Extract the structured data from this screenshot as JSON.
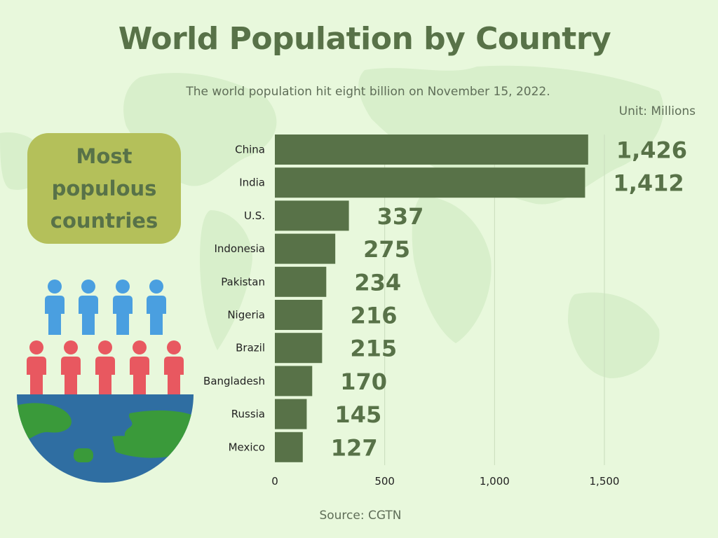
{
  "header": {
    "title": "World Population by Country",
    "subtitle": "The world population hit eight billion on November 15, 2022.",
    "unit": "Unit: Millions"
  },
  "badge": {
    "text": "Most populous countries"
  },
  "footer": {
    "source": "Source: CGTN"
  },
  "colors": {
    "bar": "#587248",
    "background": "#e8f8dc",
    "badge": "#b4c05a",
    "person_blue": "#4a9fe0",
    "person_red": "#e85860",
    "globe_ocean": "#2f6ea2",
    "globe_land": "#3a9a3a"
  },
  "chart_data": {
    "type": "bar",
    "orientation": "horizontal",
    "title": "World Population by Country",
    "subtitle": "The world population hit eight billion on November 15, 2022.",
    "unit": "Unit: Millions",
    "categories": [
      "China",
      "India",
      "U.S.",
      "Indonesia",
      "Pakistan",
      "Nigeria",
      "Brazil",
      "Bangladesh",
      "Russia",
      "Mexico"
    ],
    "values": [
      1426,
      1412,
      337,
      275,
      234,
      216,
      215,
      170,
      145,
      127
    ],
    "value_labels": [
      "1,426",
      "1,412",
      "337",
      "275",
      "234",
      "216",
      "215",
      "170",
      "145",
      "127"
    ],
    "xlim": [
      0,
      1500
    ],
    "xticks": [
      0,
      500,
      1000,
      1500
    ],
    "xtick_labels": [
      "0",
      "500",
      "1,000",
      "1,500"
    ],
    "grid": true,
    "legend": "none"
  }
}
